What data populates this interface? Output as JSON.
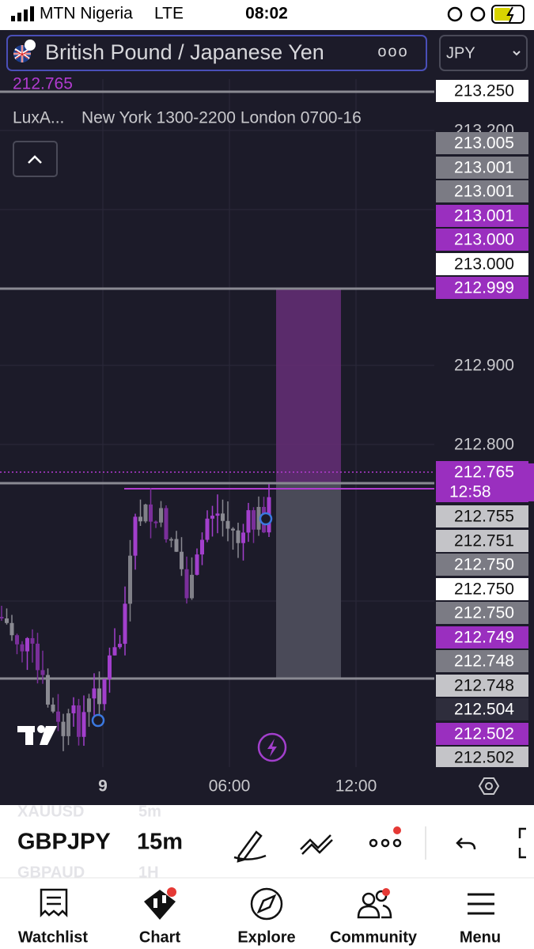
{
  "status_bar": {
    "carrier": "MTN Nigeria",
    "network": "LTE",
    "time": "08:02"
  },
  "header": {
    "symbol_name": "British Pound / Japanese Yen",
    "more": "ooo",
    "currency": "JPY",
    "last_price": "212.765"
  },
  "indicator": {
    "name": "LuxA...",
    "sessions": "New York 1300-2200 London 0700-16"
  },
  "price_scale": [
    {
      "label": "213.250",
      "style": "white"
    },
    {
      "label": "213.200",
      "style": "plain"
    },
    {
      "label": "213.005",
      "style": "gray"
    },
    {
      "label": "213.001",
      "style": "gray"
    },
    {
      "label": "213.001",
      "style": "gray"
    },
    {
      "label": "213.001",
      "style": "purple"
    },
    {
      "label": "213.000",
      "style": "purple"
    },
    {
      "label": "213.000",
      "style": "white"
    },
    {
      "label": "212.999",
      "style": "purple"
    },
    {
      "label": "212.900",
      "style": "plain"
    },
    {
      "label": "212.800",
      "style": "plain"
    },
    {
      "label": "212.765",
      "style": "purple",
      "countdown": "12:58"
    },
    {
      "label": "212.755",
      "style": "light"
    },
    {
      "label": "212.751",
      "style": "light"
    },
    {
      "label": "212.750",
      "style": "gray"
    },
    {
      "label": "212.750",
      "style": "white"
    },
    {
      "label": "212.750",
      "style": "gray"
    },
    {
      "label": "212.749",
      "style": "purple"
    },
    {
      "label": "212.748",
      "style": "gray"
    },
    {
      "label": "212.748",
      "style": "light"
    },
    {
      "label": "212.504",
      "style": "dark"
    },
    {
      "label": "212.502",
      "style": "purple"
    },
    {
      "label": "212.502",
      "style": "light"
    }
  ],
  "time_axis": [
    "9",
    "06:00",
    "12:00"
  ],
  "toolbar": {
    "prev_symbol": "XAUUSD",
    "prev_interval": "5m",
    "symbol": "GBPJPY",
    "interval": "15m",
    "next_symbol": "GBPAUD",
    "next_interval": "1H"
  },
  "tabs": [
    "Watchlist",
    "Chart",
    "Explore",
    "Community",
    "Menu"
  ]
}
